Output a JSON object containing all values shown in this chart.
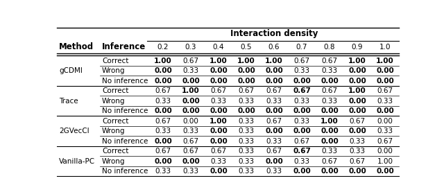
{
  "title": "Interaction density",
  "col_header_1": "Method",
  "col_header_2": "Inference",
  "density_cols": [
    "0.2",
    "0.3",
    "0.4",
    "0.5",
    "0.6",
    "0.7",
    "0.8",
    "0.9",
    "1.0"
  ],
  "methods": [
    "gCDMI",
    "Trace",
    "2GVecCI",
    "Vanilla-PC"
  ],
  "inference_types": [
    "Correct",
    "Wrong",
    "No inference"
  ],
  "data": {
    "gCDMI": {
      "Correct": [
        "1.00",
        "0.67",
        "1.00",
        "1.00",
        "1.00",
        "0.67",
        "0.67",
        "1.00",
        "1.00"
      ],
      "Wrong": [
        "0.00",
        "0.33",
        "0.00",
        "0.00",
        "0.00",
        "0.33",
        "0.33",
        "0.00",
        "0.00"
      ],
      "No inference": [
        "0.00",
        "0.00",
        "0.00",
        "0.00",
        "0.00",
        "0.00",
        "0.00",
        "0.00",
        "0.00"
      ]
    },
    "Trace": {
      "Correct": [
        "0.67",
        "1.00",
        "0.67",
        "0.67",
        "0.67",
        "0.67",
        "0.67",
        "1.00",
        "0.67"
      ],
      "Wrong": [
        "0.33",
        "0.00",
        "0.33",
        "0.33",
        "0.33",
        "0.33",
        "0.33",
        "0.00",
        "0.33"
      ],
      "No inference": [
        "0.00",
        "0.00",
        "0.00",
        "0.00",
        "0.00",
        "0.00",
        "0.00",
        "0.00",
        "0.00"
      ]
    },
    "2GVecCI": {
      "Correct": [
        "0.67",
        "0.00",
        "1.00",
        "0.33",
        "0.67",
        "0.33",
        "1.00",
        "0.67",
        "0.00"
      ],
      "Wrong": [
        "0.33",
        "0.33",
        "0.00",
        "0.33",
        "0.00",
        "0.00",
        "0.00",
        "0.00",
        "0.33"
      ],
      "No inference": [
        "0.00",
        "0.67",
        "0.00",
        "0.33",
        "0.33",
        "0.67",
        "0.00",
        "0.33",
        "0.67"
      ]
    },
    "Vanilla-PC": {
      "Correct": [
        "0.67",
        "0.67",
        "0.67",
        "0.33",
        "0.67",
        "0.67",
        "0.33",
        "0.33",
        "0.00"
      ],
      "Wrong": [
        "0.00",
        "0.00",
        "0.33",
        "0.33",
        "0.00",
        "0.33",
        "0.67",
        "0.67",
        "1.00"
      ],
      "No inference": [
        "0.33",
        "0.33",
        "0.00",
        "0.33",
        "0.33",
        "0.00",
        "0.00",
        "0.00",
        "0.00"
      ]
    }
  },
  "bold": {
    "gCDMI": {
      "Correct": [
        true,
        false,
        true,
        true,
        true,
        false,
        false,
        true,
        true
      ],
      "Wrong": [
        true,
        false,
        true,
        true,
        true,
        false,
        false,
        true,
        true
      ],
      "No inference": [
        true,
        true,
        true,
        true,
        true,
        true,
        true,
        true,
        true
      ]
    },
    "Trace": {
      "Correct": [
        false,
        true,
        false,
        false,
        false,
        true,
        false,
        true,
        false
      ],
      "Wrong": [
        false,
        true,
        false,
        false,
        false,
        false,
        false,
        true,
        false
      ],
      "No inference": [
        true,
        true,
        true,
        true,
        true,
        true,
        true,
        true,
        true
      ]
    },
    "2GVecCI": {
      "Correct": [
        false,
        false,
        true,
        false,
        false,
        false,
        true,
        false,
        false
      ],
      "Wrong": [
        false,
        false,
        true,
        false,
        true,
        true,
        true,
        true,
        false
      ],
      "No inference": [
        true,
        false,
        true,
        false,
        false,
        false,
        true,
        false,
        false
      ]
    },
    "Vanilla-PC": {
      "Correct": [
        false,
        false,
        false,
        false,
        false,
        true,
        false,
        false,
        false
      ],
      "Wrong": [
        true,
        true,
        false,
        false,
        true,
        false,
        false,
        false,
        false
      ],
      "No inference": [
        false,
        false,
        true,
        false,
        false,
        true,
        true,
        true,
        true
      ]
    }
  },
  "bg_color": "#ffffff",
  "font_size": 7.5,
  "header_font_size": 8.5
}
